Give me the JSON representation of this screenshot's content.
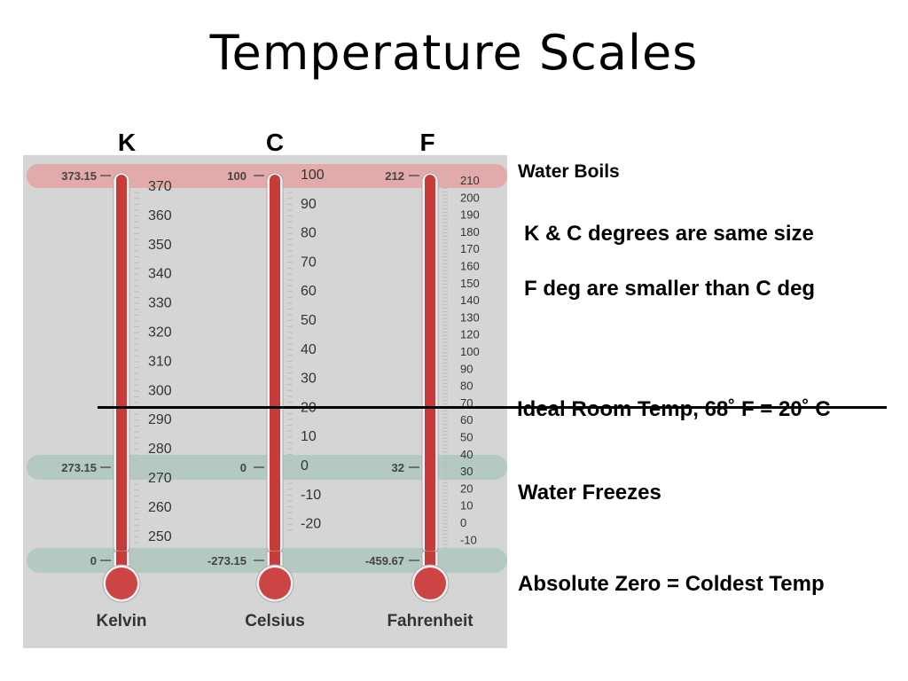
{
  "title": "Temperature Scales",
  "column_letters": [
    "K",
    "C",
    "F"
  ],
  "notes": {
    "water_boils": "Water Boils",
    "same_size": "K & C degrees are same size",
    "smaller": "F deg are smaller than C deg",
    "room_temp": "Ideal Room Temp, 68˚   F = 20˚   C",
    "water_freezes": "Water Freezes",
    "absolute_zero": "Absolute Zero = Coldest Temp"
  },
  "thermometers": [
    {
      "name": "Kelvin",
      "marks": {
        "boil": "373.15",
        "freeze": "273.15",
        "zero": "0"
      },
      "scale_labels": [
        "370",
        "360",
        "350",
        "340",
        "330",
        "320",
        "310",
        "300",
        "290",
        "280",
        "270",
        "260",
        "250"
      ]
    },
    {
      "name": "Celsius",
      "marks": {
        "boil": "100",
        "freeze": "0",
        "zero": "-273.15"
      },
      "scale_labels": [
        "100",
        "90",
        "80",
        "70",
        "60",
        "50",
        "40",
        "30",
        "20",
        "10",
        "0",
        "-10",
        "-20"
      ]
    },
    {
      "name": "Fahrenheit",
      "marks": {
        "boil": "212",
        "freeze": "32",
        "zero": "-459.67"
      },
      "scale_labels": [
        "210",
        "200",
        "190",
        "180",
        "170",
        "160",
        "150",
        "140",
        "130",
        "120",
        "100",
        "90",
        "80",
        "70",
        "60",
        "50",
        "40",
        "30",
        "20",
        "10",
        "0",
        "-10"
      ]
    }
  ],
  "colors": {
    "panel": "#d5d5d5",
    "boil_band": "#e2aaaa",
    "freeze_band": "#b3c9c2",
    "zero_band": "#b3c9c2",
    "mercury": "#c73b3b",
    "bulb": "#cc4444"
  }
}
